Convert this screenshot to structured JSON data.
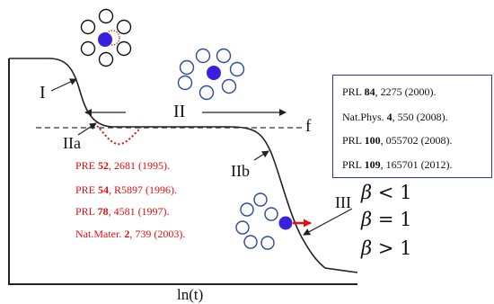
{
  "regime_labels": {
    "I": "I",
    "II": "II",
    "IIa": "IIa",
    "IIb": "IIb",
    "III": "III",
    "f": "f"
  },
  "x_axis_label": "ln(t)",
  "red_references": [
    {
      "journal": "PRE ",
      "volume": "52",
      "rest": ", 2681 (1995)."
    },
    {
      "journal": "PRE ",
      "volume": "54",
      "rest": ", R5897 (1996)."
    },
    {
      "journal": "PRL ",
      "volume": "78",
      "rest": ", 4581 (1997)."
    },
    {
      "journal": "Nat.Mater. ",
      "volume": "2",
      "rest": ", 739 (2003)."
    }
  ],
  "box_references": [
    {
      "journal": "PRL ",
      "volume": "84",
      "rest": ", 2275 (2000)."
    },
    {
      "journal": "Nat.Phys. ",
      "volume": "4",
      "rest": ", 550 (2008)."
    },
    {
      "journal": "PRL ",
      "volume": "100",
      "rest": ", 055702 (2008)."
    },
    {
      "journal": "PRL ",
      "volume": "109",
      "rest": ", 165701 (2012)."
    }
  ],
  "beta_conditions": [
    {
      "symbol": "β",
      "relation": " < 1"
    },
    {
      "symbol": "β",
      "relation": " = 1"
    },
    {
      "symbol": "β",
      "relation": " > 1"
    }
  ],
  "colors": {
    "curve": "#222222",
    "red": "#e01010",
    "blue_particle": "#3a1fe0",
    "cage_black": "#111111",
    "cage_blue": "#2a4a9a",
    "box_border": "#2a3b8f"
  }
}
